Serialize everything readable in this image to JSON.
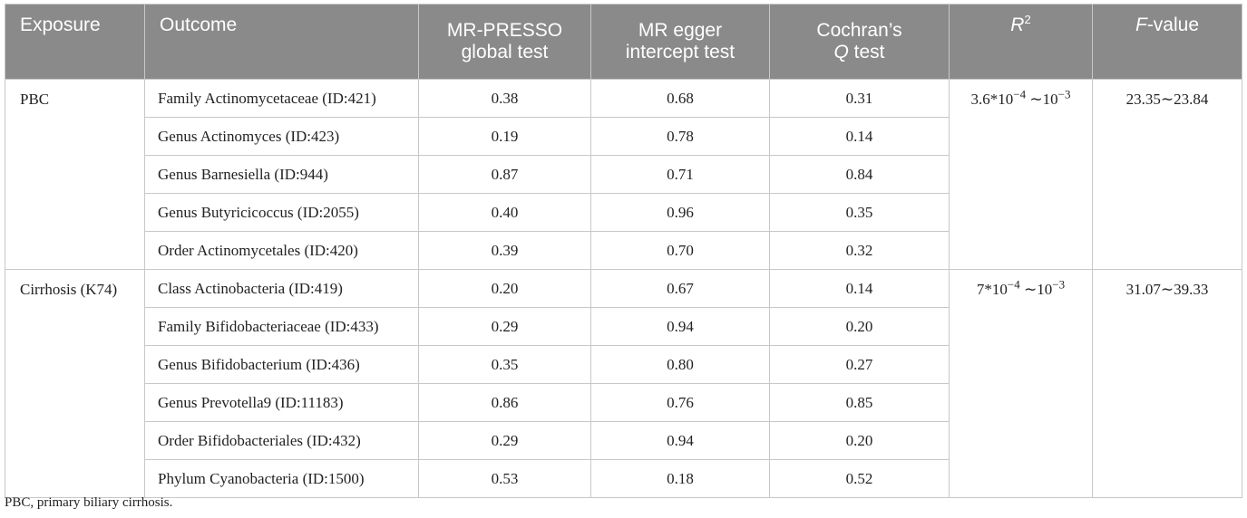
{
  "headers": {
    "exposure": "Exposure",
    "outcome": "Outcome",
    "mrpresso_1": "MR-PRESSO",
    "mrpresso_2": "global test",
    "egger_1": "MR egger",
    "egger_2": "intercept test",
    "cochran_1": "Cochran’s",
    "cochran_q": "Q",
    "cochran_2": " test",
    "r2_base": "R",
    "r2_sup": "2",
    "f_italic": "F",
    "f_rest": "-value"
  },
  "groups": [
    {
      "exposure": "PBC",
      "r2_base": "3.6*10",
      "r2_exp": "−4",
      "r2_tail": " ∼10",
      "r2_exp2": "−3",
      "f_value": "23.35∼23.84",
      "rows": [
        {
          "outcome": "Family Actinomycetaceae (ID:421)",
          "mrpresso": "0.38",
          "egger": "0.68",
          "cochran": "0.31"
        },
        {
          "outcome": "Genus Actinomyces (ID:423)",
          "mrpresso": "0.19",
          "egger": "0.78",
          "cochran": "0.14"
        },
        {
          "outcome": "Genus Barnesiella (ID:944)",
          "mrpresso": "0.87",
          "egger": "0.71",
          "cochran": "0.84"
        },
        {
          "outcome": "Genus Butyricicoccus (ID:2055)",
          "mrpresso": "0.40",
          "egger": "0.96",
          "cochran": "0.35"
        },
        {
          "outcome": "Order Actinomycetales (ID:420)",
          "mrpresso": "0.39",
          "egger": "0.70",
          "cochran": "0.32"
        }
      ]
    },
    {
      "exposure": "Cirrhosis (K74)",
      "r2_base": "7*10",
      "r2_exp": "−4",
      "r2_tail": " ∼10",
      "r2_exp2": "−3",
      "f_value": "31.07∼39.33",
      "rows": [
        {
          "outcome": "Class Actinobacteria (ID:419)",
          "mrpresso": "0.20",
          "egger": "0.67",
          "cochran": "0.14"
        },
        {
          "outcome": "Family Bifidobacteriaceae (ID:433)",
          "mrpresso": "0.29",
          "egger": "0.94",
          "cochran": "0.20"
        },
        {
          "outcome": "Genus Bifidobacterium (ID:436)",
          "mrpresso": "0.35",
          "egger": "0.80",
          "cochran": "0.27"
        },
        {
          "outcome": "Genus Prevotella9 (ID:11183)",
          "mrpresso": "0.86",
          "egger": "0.76",
          "cochran": "0.85"
        },
        {
          "outcome": "Order Bifidobacteriales (ID:432)",
          "mrpresso": "0.29",
          "egger": "0.94",
          "cochran": "0.20"
        },
        {
          "outcome": "Phylum Cyanobacteria (ID:1500)",
          "mrpresso": "0.53",
          "egger": "0.18",
          "cochran": "0.52"
        }
      ]
    }
  ],
  "footnote": "PBC, primary biliary cirrhosis."
}
